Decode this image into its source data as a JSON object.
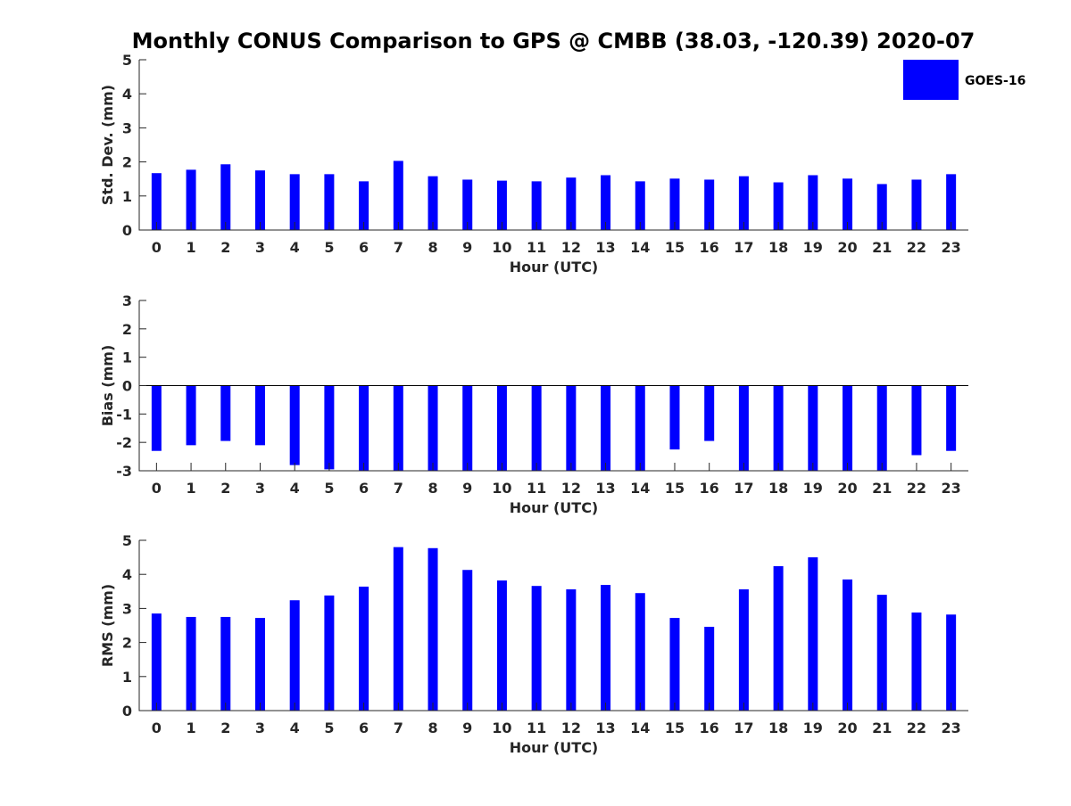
{
  "title": "Monthly CONUS Comparison to GPS @ CMBB (38.03, -120.39) 2020-07",
  "legend": {
    "label": "GOES-16",
    "color": "#0000ff",
    "placement": "top-right"
  },
  "bar_color": "#0000ff",
  "chart_data": [
    {
      "type": "bar",
      "name": "stddev",
      "categories": [
        "0",
        "1",
        "2",
        "3",
        "4",
        "5",
        "6",
        "7",
        "8",
        "9",
        "10",
        "11",
        "12",
        "13",
        "14",
        "15",
        "16",
        "17",
        "18",
        "19",
        "20",
        "21",
        "22",
        "23"
      ],
      "series": [
        {
          "name": "GOES-16",
          "values": [
            1.67,
            1.77,
            1.93,
            1.75,
            1.64,
            1.64,
            1.43,
            2.03,
            1.58,
            1.48,
            1.45,
            1.43,
            1.54,
            1.61,
            1.43,
            1.51,
            1.48,
            1.58,
            1.4,
            1.61,
            1.51,
            1.35,
            1.48,
            1.64
          ]
        }
      ],
      "xlabel": "Hour (UTC)",
      "ylabel": "Std. Dev. (mm)",
      "ylim": [
        0,
        5
      ],
      "yticks": [
        "0",
        "1",
        "2",
        "3",
        "4",
        "5"
      ]
    },
    {
      "type": "bar",
      "name": "bias",
      "categories": [
        "0",
        "1",
        "2",
        "3",
        "4",
        "5",
        "6",
        "7",
        "8",
        "9",
        "10",
        "11",
        "12",
        "13",
        "14",
        "15",
        "16",
        "17",
        "18",
        "19",
        "20",
        "21",
        "22",
        "23"
      ],
      "series": [
        {
          "name": "GOES-16",
          "values": [
            -2.3,
            -2.1,
            -1.95,
            -2.1,
            -2.8,
            -2.95,
            -3.0,
            -3.0,
            -3.0,
            -3.0,
            -3.0,
            -3.0,
            -3.0,
            -3.0,
            -3.0,
            -2.25,
            -1.95,
            -3.0,
            -3.0,
            -3.0,
            -3.0,
            -3.0,
            -2.45,
            -2.3
          ]
        }
      ],
      "xlabel": "Hour (UTC)",
      "ylabel": "Bias (mm)",
      "ylim": [
        -3,
        3
      ],
      "yticks": [
        "-3",
        "-2",
        "-1",
        "0",
        "1",
        "2",
        "3"
      ]
    },
    {
      "type": "bar",
      "name": "rms",
      "categories": [
        "0",
        "1",
        "2",
        "3",
        "4",
        "5",
        "6",
        "7",
        "8",
        "9",
        "10",
        "11",
        "12",
        "13",
        "14",
        "15",
        "16",
        "17",
        "18",
        "19",
        "20",
        "21",
        "22",
        "23"
      ],
      "series": [
        {
          "name": "GOES-16",
          "values": [
            2.85,
            2.75,
            2.75,
            2.72,
            3.24,
            3.38,
            3.64,
            4.8,
            4.77,
            4.13,
            3.82,
            3.66,
            3.56,
            3.69,
            3.45,
            2.72,
            2.46,
            3.56,
            4.24,
            4.5,
            3.85,
            3.4,
            2.88,
            2.82
          ]
        }
      ],
      "xlabel": "Hour (UTC)",
      "ylabel": "RMS (mm)",
      "ylim": [
        0,
        5
      ],
      "yticks": [
        "0",
        "1",
        "2",
        "3",
        "4",
        "5"
      ]
    }
  ]
}
